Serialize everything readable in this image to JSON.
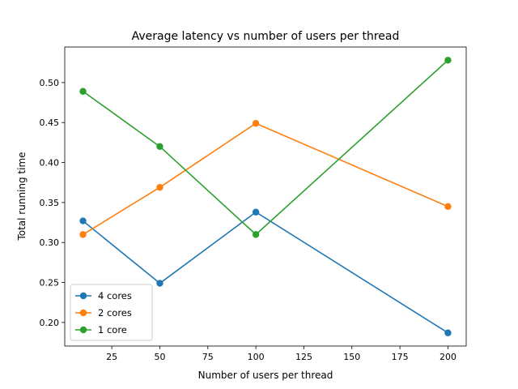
{
  "chart_data": {
    "type": "line",
    "title": "Average latency vs number of users per thread",
    "xlabel": "Number of users per thread",
    "ylabel": "Total running time",
    "xlim": [
      0.5,
      209.5
    ],
    "ylim": [
      0.1705,
      0.5445
    ],
    "xticks": [
      25,
      50,
      75,
      100,
      125,
      150,
      175,
      200
    ],
    "xtick_labels": [
      "25",
      "50",
      "75",
      "100",
      "125",
      "150",
      "175",
      "200"
    ],
    "yticks": [
      0.2,
      0.25,
      0.3,
      0.35,
      0.4,
      0.45,
      0.5
    ],
    "ytick_labels": [
      "0.20",
      "0.25",
      "0.30",
      "0.35",
      "0.40",
      "0.45",
      "0.50"
    ],
    "grid": false,
    "legend_position": "lower-left",
    "x": [
      10,
      50,
      100,
      200
    ],
    "series": [
      {
        "name": "4 cores",
        "color": "#1f77b4",
        "values": [
          0.327,
          0.249,
          0.338,
          0.187
        ]
      },
      {
        "name": "2 cores",
        "color": "#ff7f0e",
        "values": [
          0.31,
          0.369,
          0.449,
          0.345
        ]
      },
      {
        "name": "1 core",
        "color": "#2ca02c",
        "values": [
          0.489,
          0.42,
          0.31,
          0.528
        ]
      }
    ]
  }
}
